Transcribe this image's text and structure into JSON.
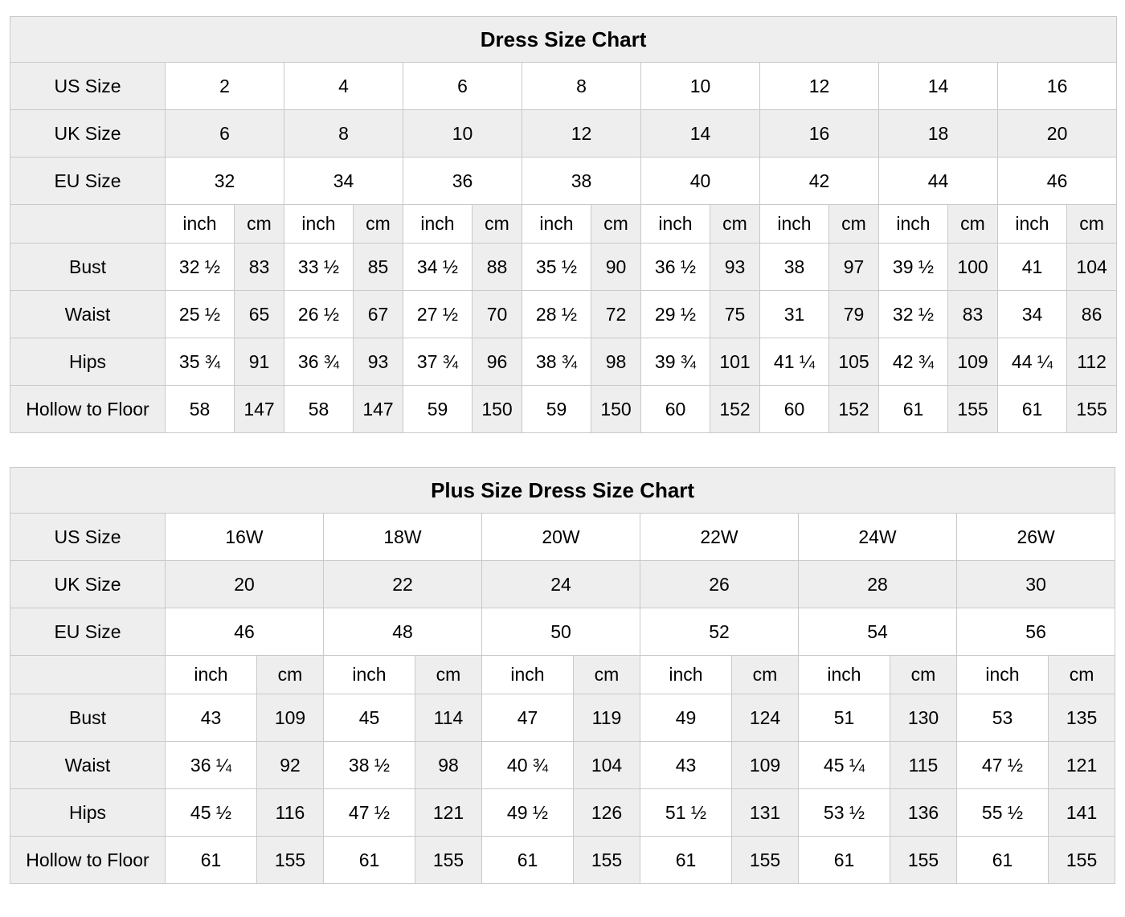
{
  "colors": {
    "shaded_cell": "#eeeeee",
    "white_cell": "#ffffff",
    "border": "#c9c9c9",
    "text": "#000000"
  },
  "tables": [
    {
      "title": "Dress Size Chart",
      "unit_labels": [
        "inch",
        "cm"
      ],
      "size_rows": [
        {
          "label": "US Size",
          "shaded": false,
          "values": [
            "2",
            "4",
            "6",
            "8",
            "10",
            "12",
            "14",
            "16"
          ]
        },
        {
          "label": "UK Size",
          "shaded": true,
          "values": [
            "6",
            "8",
            "10",
            "12",
            "14",
            "16",
            "18",
            "20"
          ]
        },
        {
          "label": "EU Size",
          "shaded": false,
          "values": [
            "32",
            "34",
            "36",
            "38",
            "40",
            "42",
            "44",
            "46"
          ]
        }
      ],
      "measurement_rows": [
        {
          "label": "Bust",
          "inch": [
            "32 ½",
            "33 ½",
            "34 ½",
            "35 ½",
            "36 ½",
            "38",
            "39 ½",
            "41"
          ],
          "cm": [
            "83",
            "85",
            "88",
            "90",
            "93",
            "97",
            "100",
            "104"
          ]
        },
        {
          "label": "Waist",
          "inch": [
            "25 ½",
            "26 ½",
            "27 ½",
            "28 ½",
            "29 ½",
            "31",
            "32 ½",
            "34"
          ],
          "cm": [
            "65",
            "67",
            "70",
            "72",
            "75",
            "79",
            "83",
            "86"
          ]
        },
        {
          "label": "Hips",
          "inch": [
            "35 ¾",
            "36 ¾",
            "37 ¾",
            "38 ¾",
            "39 ¾",
            "41 ¼",
            "42 ¾",
            "44 ¼"
          ],
          "cm": [
            "91",
            "93",
            "96",
            "98",
            "101",
            "105",
            "109",
            "112"
          ]
        },
        {
          "label": "Hollow to Floor",
          "inch": [
            "58",
            "58",
            "59",
            "59",
            "60",
            "60",
            "61",
            "61"
          ],
          "cm": [
            "147",
            "147",
            "150",
            "150",
            "152",
            "152",
            "155",
            "155"
          ]
        }
      ]
    },
    {
      "title": "Plus Size Dress Size Chart",
      "unit_labels": [
        "inch",
        "cm"
      ],
      "size_rows": [
        {
          "label": "US Size",
          "shaded": false,
          "values": [
            "16W",
            "18W",
            "20W",
            "22W",
            "24W",
            "26W"
          ]
        },
        {
          "label": "UK Size",
          "shaded": true,
          "values": [
            "20",
            "22",
            "24",
            "26",
            "28",
            "30"
          ]
        },
        {
          "label": "EU Size",
          "shaded": false,
          "values": [
            "46",
            "48",
            "50",
            "52",
            "54",
            "56"
          ]
        }
      ],
      "measurement_rows": [
        {
          "label": "Bust",
          "inch": [
            "43",
            "45",
            "47",
            "49",
            "51",
            "53"
          ],
          "cm": [
            "109",
            "114",
            "119",
            "124",
            "130",
            "135"
          ]
        },
        {
          "label": "Waist",
          "inch": [
            "36 ¼",
            "38 ½",
            "40 ¾",
            "43",
            "45 ¼",
            "47 ½"
          ],
          "cm": [
            "92",
            "98",
            "104",
            "109",
            "115",
            "121"
          ]
        },
        {
          "label": "Hips",
          "inch": [
            "45 ½",
            "47 ½",
            "49 ½",
            "51 ½",
            "53 ½",
            "55 ½"
          ],
          "cm": [
            "116",
            "121",
            "126",
            "131",
            "136",
            "141"
          ]
        },
        {
          "label": "Hollow to Floor",
          "inch": [
            "61",
            "61",
            "61",
            "61",
            "61",
            "61"
          ],
          "cm": [
            "155",
            "155",
            "155",
            "155",
            "155",
            "155"
          ]
        }
      ]
    }
  ]
}
